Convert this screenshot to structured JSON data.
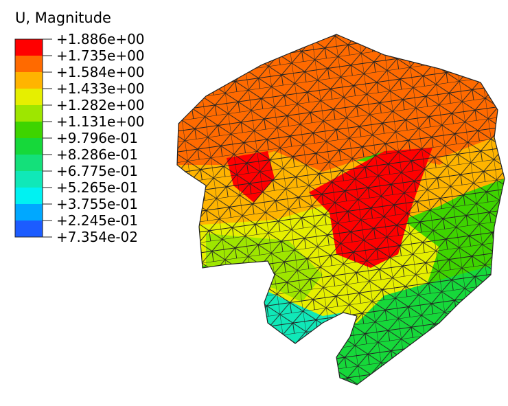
{
  "legend": {
    "title": "U, Magnitude",
    "levels": [
      "+1.886e+00",
      "+1.735e+00",
      "+1.584e+00",
      "+1.433e+00",
      "+1.282e+00",
      "+1.131e+00",
      "+9.796e-01",
      "+8.286e-01",
      "+6.775e-01",
      "+5.265e-01",
      "+3.755e-01",
      "+2.245e-01",
      "+7.354e-02"
    ],
    "colors": [
      "#ff0000",
      "#ff6a00",
      "#ffb400",
      "#e6ef00",
      "#9ee600",
      "#3ed400",
      "#16d83a",
      "#14e07a",
      "#10e8b8",
      "#00f2f2",
      "#00a8ff",
      "#1c5cff",
      "#0000ff"
    ]
  }
}
